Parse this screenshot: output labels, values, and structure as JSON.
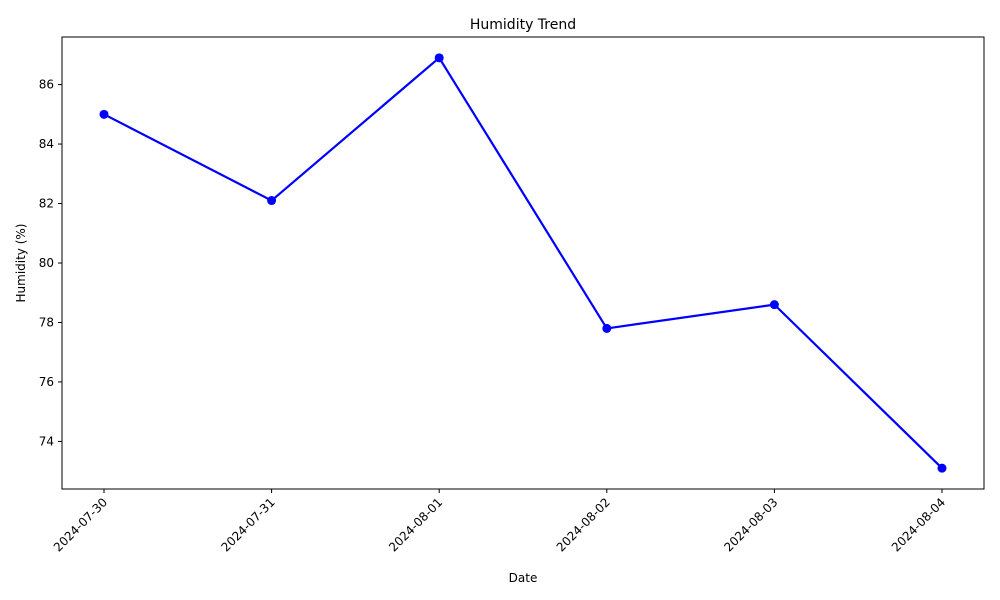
{
  "chart_data": {
    "type": "line",
    "title": "Humidity Trend",
    "xlabel": "Date",
    "ylabel": "Humidity (%)",
    "categories": [
      "2024-07-30",
      "2024-07-31",
      "2024-08-01",
      "2024-08-02",
      "2024-08-03",
      "2024-08-04"
    ],
    "series": [
      {
        "values": [
          85.0,
          82.1,
          86.9,
          77.8,
          78.6,
          73.1
        ],
        "color": "#0000ff",
        "marker": "circle"
      }
    ],
    "yticks": [
      74,
      76,
      78,
      80,
      82,
      84,
      86
    ],
    "ylim": [
      72.4,
      87.6
    ],
    "grid": false,
    "legend": "none"
  }
}
